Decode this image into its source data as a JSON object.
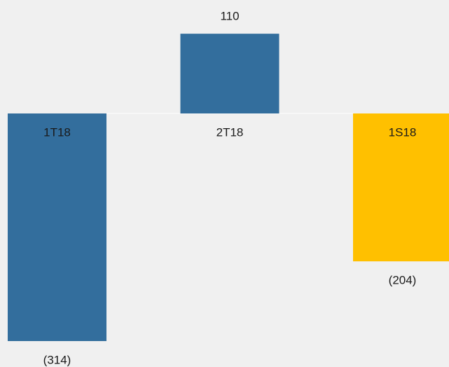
{
  "chart_data": {
    "type": "bar",
    "categories": [
      "1T18",
      "2T18",
      "1S18"
    ],
    "values": [
      -314,
      110,
      -204
    ],
    "value_labels": [
      "(314)",
      "110",
      "(204)"
    ],
    "colors": [
      "#336e9d",
      "#336e9d",
      "#ffc000"
    ]
  }
}
